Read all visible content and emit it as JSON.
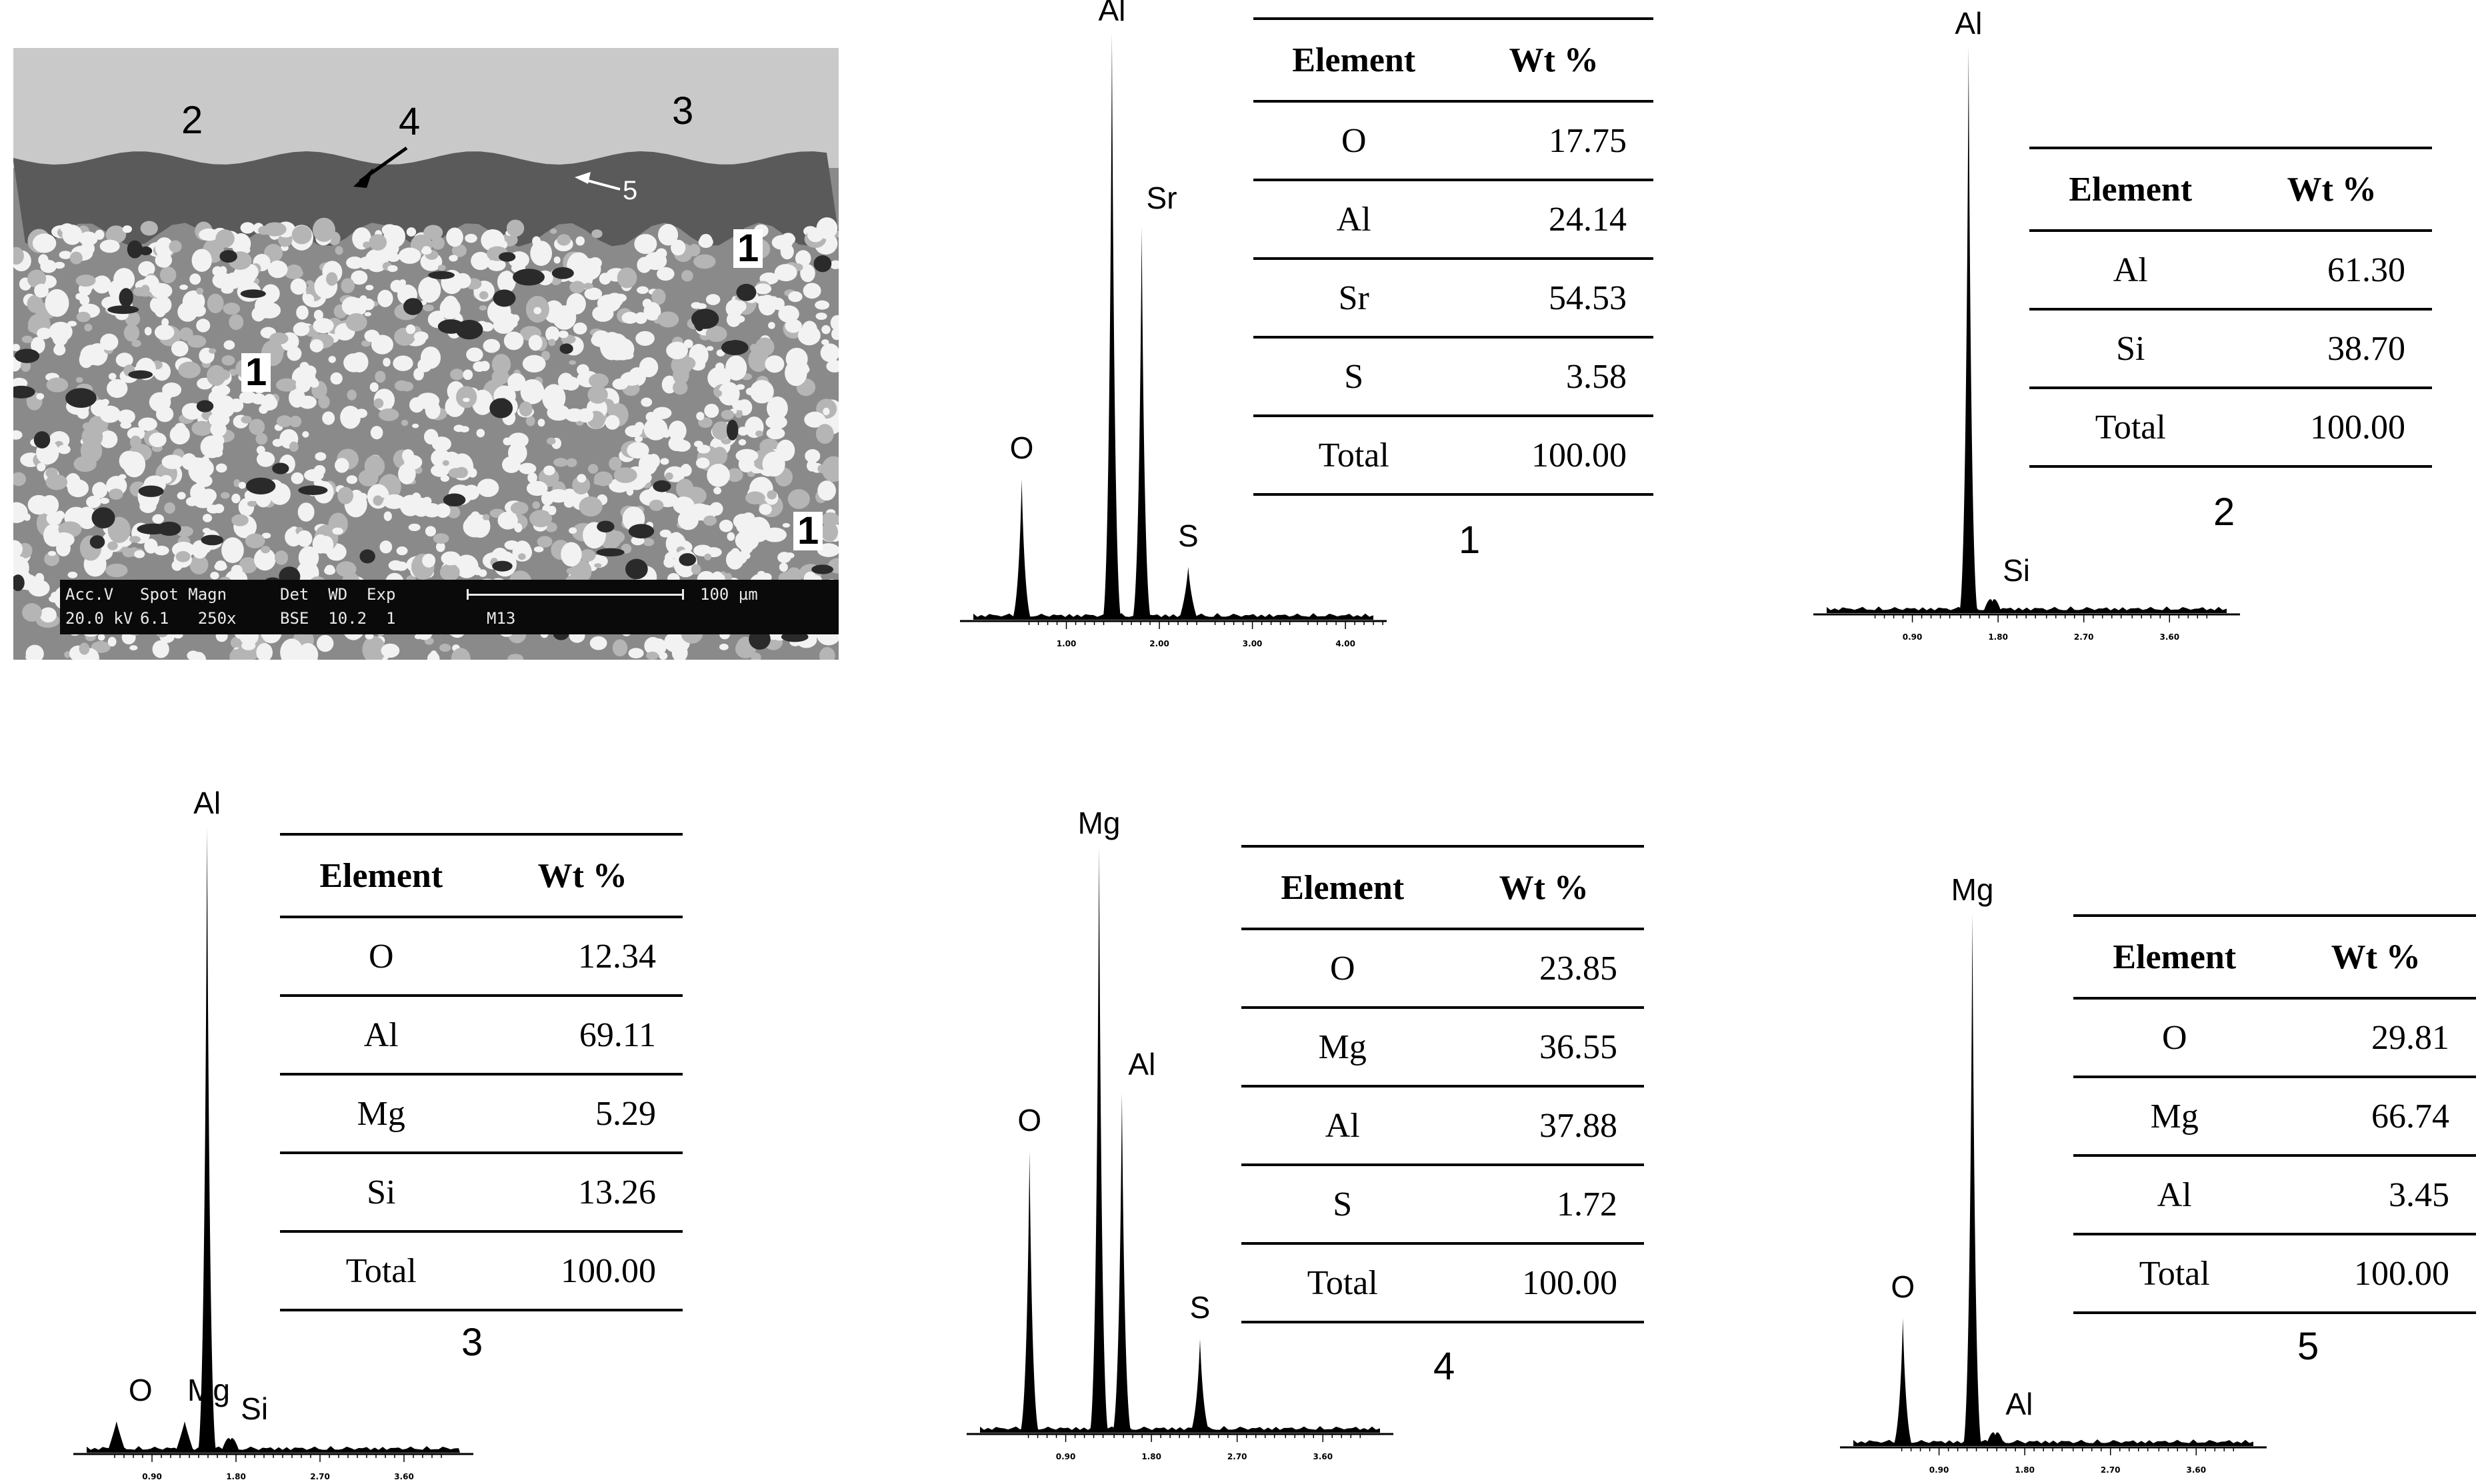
{
  "sem": {
    "labels": {
      "l2": "2",
      "l3": "3",
      "l4": "4",
      "l5": "5",
      "l1a": "1",
      "l1b": "1",
      "l1c": "1"
    },
    "databar": {
      "r1": {
        "acc": "Acc.V",
        "spot": "Spot Magn",
        "det": "Det  WD  Exp",
        "scale": "100 µm"
      },
      "r2": {
        "acc": "20.0 kV",
        "spot": "6.1   250x",
        "det": "BSE  10.2  1",
        "id": "M13"
      }
    }
  },
  "panels": [
    {
      "number": "1",
      "table": {
        "header": {
          "element": "Element",
          "wt": "Wt %"
        },
        "rows": [
          [
            "O",
            "17.75"
          ],
          [
            "Al",
            "24.14"
          ],
          [
            "Sr",
            "54.53"
          ],
          [
            "S",
            "3.58"
          ],
          [
            "Total",
            "100.00"
          ]
        ]
      },
      "spectrum": {
        "ticks": [
          "1.00",
          "2.00",
          "3.00",
          "4.00"
        ],
        "peaks": [
          {
            "label": "O",
            "energy": 0.52,
            "height": 0.24
          },
          {
            "label": "Al",
            "energy": 1.49,
            "height": 1.0
          },
          {
            "label": "Sr",
            "energy": 1.81,
            "height": 0.67
          },
          {
            "label": "S",
            "energy": 2.31,
            "height": 0.09
          }
        ],
        "x_range": [
          0,
          4.3
        ]
      }
    },
    {
      "number": "2",
      "table": {
        "header": {
          "element": "Element",
          "wt": "Wt %"
        },
        "rows": [
          [
            "Al",
            "61.30"
          ],
          [
            "Si",
            "38.70"
          ],
          [
            "Total",
            "100.00"
          ]
        ]
      },
      "spectrum": {
        "ticks": [
          "0.90",
          "1.80",
          "2.70",
          "3.60"
        ],
        "peaks": [
          {
            "label": "Al",
            "energy": 1.49,
            "height": 1.0
          },
          {
            "label": "Si",
            "energy": 1.74,
            "height": 0.02
          }
        ],
        "x_range": [
          0,
          4.2
        ]
      }
    },
    {
      "number": "3",
      "table": {
        "header": {
          "element": "Element",
          "wt": "Wt %"
        },
        "rows": [
          [
            "O",
            "12.34"
          ],
          [
            "Al",
            "69.11"
          ],
          [
            "Mg",
            "5.29"
          ],
          [
            "Si",
            "13.26"
          ],
          [
            "Total",
            "100.00"
          ]
        ]
      },
      "spectrum": {
        "ticks": [
          "0.90",
          "1.80",
          "2.70",
          "3.60"
        ],
        "peaks": [
          {
            "label": "O",
            "energy": 0.52,
            "height": 0.05
          },
          {
            "label": "Mg",
            "energy": 1.25,
            "height": 0.05
          },
          {
            "label": "Al",
            "energy": 1.49,
            "height": 1.0
          },
          {
            "label": "Si",
            "energy": 1.74,
            "height": 0.02
          }
        ],
        "x_range": [
          0.2,
          4.2
        ]
      }
    },
    {
      "number": "4",
      "table": {
        "header": {
          "element": "Element",
          "wt": "Wt %"
        },
        "rows": [
          [
            "O",
            "23.85"
          ],
          [
            "Mg",
            "36.55"
          ],
          [
            "Al",
            "37.88"
          ],
          [
            "S",
            "1.72"
          ],
          [
            "Total",
            "100.00"
          ]
        ]
      },
      "spectrum": {
        "ticks": [
          "0.90",
          "1.80",
          "2.70",
          "3.60"
        ],
        "peaks": [
          {
            "label": "O",
            "energy": 0.52,
            "height": 0.48
          },
          {
            "label": "Mg",
            "energy": 1.25,
            "height": 1.0
          },
          {
            "label": "Al",
            "energy": 1.49,
            "height": 0.58
          },
          {
            "label": "S",
            "energy": 2.31,
            "height": 0.16
          }
        ],
        "x_range": [
          0,
          4.2
        ]
      }
    },
    {
      "number": "5",
      "table": {
        "header": {
          "element": "Element",
          "wt": "Wt %"
        },
        "rows": [
          [
            "O",
            "29.81"
          ],
          [
            "Mg",
            "66.74"
          ],
          [
            "Al",
            "3.45"
          ],
          [
            "Total",
            "100.00"
          ]
        ]
      },
      "spectrum": {
        "ticks": [
          "0.90",
          "1.80",
          "2.70",
          "3.60"
        ],
        "peaks": [
          {
            "label": "O",
            "energy": 0.52,
            "height": 0.24
          },
          {
            "label": "Mg",
            "energy": 1.25,
            "height": 1.0
          },
          {
            "label": "Al",
            "energy": 1.49,
            "height": 0.02
          }
        ],
        "x_range": [
          0,
          4.2
        ]
      }
    }
  ]
}
